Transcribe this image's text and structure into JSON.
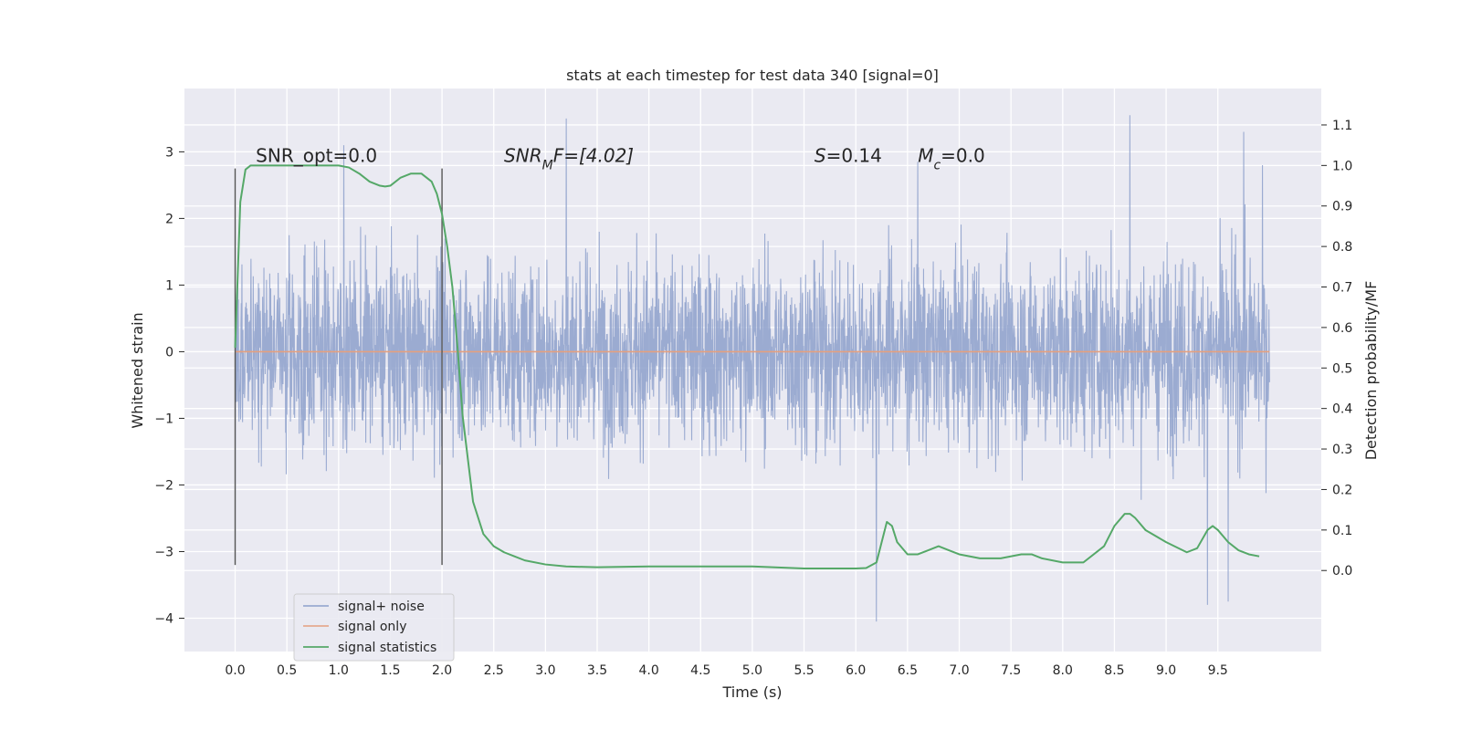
{
  "chart_data": {
    "type": "line",
    "title": "stats at each timestep for test data 340 [signal=0]",
    "xlabel": "Time (s)",
    "ylabel": "Whitened strain",
    "ylabel_right": "Detection probability/MF",
    "xlim": [
      -0.49,
      10.5
    ],
    "ylim": [
      -4.5,
      3.95
    ],
    "ylim_right": [
      -0.2,
      1.19
    ],
    "xticks": [
      "0.0",
      "0.5",
      "1.0",
      "1.5",
      "2.0",
      "2.5",
      "3.0",
      "3.5",
      "4.0",
      "4.5",
      "5.0",
      "5.5",
      "6.0",
      "6.5",
      "7.0",
      "7.5",
      "8.0",
      "8.5",
      "9.0",
      "9.5"
    ],
    "yticks": [
      "3",
      "2",
      "1",
      "0",
      "−1",
      "−2",
      "−3",
      "−4"
    ],
    "yticks_right": [
      "1.1",
      "1.0",
      "0.9",
      "0.8",
      "0.7",
      "0.6",
      "0.5",
      "0.4",
      "0.3",
      "0.2",
      "0.1",
      "0.0"
    ],
    "grid": true,
    "legend_position": "lower-left",
    "series": [
      {
        "name": "signal+ noise",
        "color": "#8da0cb",
        "kind": "noise",
        "x_range": [
          0.0,
          10.0
        ],
        "typical_amplitude": 1.6,
        "extremes": [
          {
            "x": 0.0,
            "y": 2.75
          },
          {
            "x": 0.0,
            "y": -3.2
          },
          {
            "x": 1.05,
            "y": 3.1
          },
          {
            "x": 3.2,
            "y": 3.5
          },
          {
            "x": 6.2,
            "y": -4.05
          },
          {
            "x": 6.6,
            "y": 2.85
          },
          {
            "x": 8.65,
            "y": 3.55
          },
          {
            "x": 9.4,
            "y": -3.8
          },
          {
            "x": 9.6,
            "y": -3.75
          },
          {
            "x": 9.75,
            "y": 3.3
          },
          {
            "x": 9.93,
            "y": 2.8
          }
        ]
      },
      {
        "name": "signal only",
        "color": "#e5a07f",
        "x": [
          0.0,
          10.0
        ],
        "y": [
          0.0,
          0.0
        ]
      },
      {
        "name": "signal statistics",
        "color": "#55a868",
        "axis": "right",
        "x": [
          0.0,
          0.05,
          0.1,
          0.15,
          0.2,
          0.3,
          0.5,
          0.7,
          0.9,
          1.0,
          1.1,
          1.2,
          1.3,
          1.4,
          1.45,
          1.5,
          1.6,
          1.7,
          1.75,
          1.8,
          1.9,
          1.95,
          2.0,
          2.05,
          2.1,
          2.15,
          2.2,
          2.3,
          2.4,
          2.5,
          2.6,
          2.7,
          2.8,
          3.0,
          3.2,
          3.5,
          4.0,
          4.5,
          5.0,
          5.5,
          5.8,
          6.0,
          6.1,
          6.2,
          6.3,
          6.35,
          6.4,
          6.5,
          6.6,
          6.7,
          6.8,
          6.9,
          7.0,
          7.2,
          7.4,
          7.6,
          7.7,
          7.8,
          8.0,
          8.2,
          8.4,
          8.5,
          8.6,
          8.65,
          8.7,
          8.8,
          9.0,
          9.2,
          9.3,
          9.4,
          9.45,
          9.5,
          9.6,
          9.7,
          9.8,
          9.9
        ],
        "y": [
          0.55,
          0.91,
          0.99,
          1.0,
          1.0,
          1.0,
          1.0,
          1.0,
          1.0,
          1.0,
          0.995,
          0.98,
          0.96,
          0.95,
          0.948,
          0.95,
          0.97,
          0.98,
          0.98,
          0.98,
          0.96,
          0.93,
          0.88,
          0.8,
          0.7,
          0.55,
          0.38,
          0.17,
          0.09,
          0.06,
          0.045,
          0.035,
          0.025,
          0.015,
          0.01,
          0.008,
          0.01,
          0.01,
          0.01,
          0.005,
          0.005,
          0.005,
          0.006,
          0.02,
          0.12,
          0.11,
          0.07,
          0.04,
          0.04,
          0.05,
          0.06,
          0.05,
          0.04,
          0.03,
          0.03,
          0.04,
          0.04,
          0.03,
          0.02,
          0.02,
          0.06,
          0.11,
          0.14,
          0.14,
          0.13,
          0.1,
          0.07,
          0.045,
          0.055,
          0.1,
          0.11,
          0.1,
          0.07,
          0.05,
          0.04,
          0.035
        ]
      }
    ],
    "vlines": [
      0.0,
      2.0
    ],
    "annotations": [
      {
        "text": "SNR_opt=0.0",
        "x": 0.2,
        "y": 2.85
      },
      {
        "text": "SNR",
        "sub": "M",
        "rest": "F=[4.02]",
        "x": 2.6,
        "y": 2.85
      },
      {
        "text": "S",
        "rest": "=0.14",
        "x": 5.6,
        "y": 2.85
      },
      {
        "text": "M",
        "sub": "c",
        "rest": "=0.0",
        "x": 6.6,
        "y": 2.85
      }
    ]
  }
}
